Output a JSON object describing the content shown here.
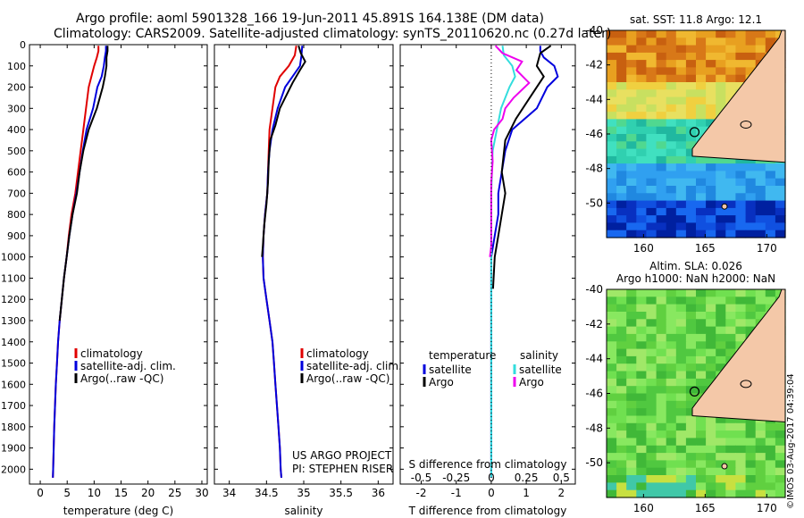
{
  "title": {
    "line1": "Argo profile: aoml 5901328_166 19-Jun-2011 45.891S 164.138E (DM data)",
    "line2": "Climatology: CARS2009. Satellite-adjusted climatology: synTS_20110620.nc (0.27d later)"
  },
  "watermark": "©IMOS 03-Aug-2017 04:39:04",
  "colors": {
    "climatology": "#e00000",
    "satellite": "#0000dd",
    "argo": "#000000",
    "argo_salinity": "#ee00ee",
    "satellite_salinity": "#33dddd"
  },
  "chart_data": [
    {
      "type": "line",
      "xlabel": "temperature (deg C)",
      "ylabel": "",
      "xlim": [
        -2,
        31
      ],
      "ylim": [
        2070,
        0
      ],
      "xticks": [
        "0",
        "5",
        "10",
        "15",
        "20",
        "25",
        "30"
      ],
      "yticks": [
        "0",
        "100",
        "200",
        "300",
        "400",
        "500",
        "600",
        "700",
        "800",
        "900",
        "1000",
        "1100",
        "1200",
        "1300",
        "1400",
        "1500",
        "1600",
        "1700",
        "1800",
        "1900",
        "2000"
      ],
      "legend": {
        "placement": "right-middle",
        "items": [
          "climatology",
          "satellite-adj. clim.",
          "Argo(..raw -QC)"
        ]
      },
      "series": [
        {
          "name": "climatology",
          "points": [
            [
              10.8,
              5
            ],
            [
              10.8,
              30
            ],
            [
              10.5,
              60
            ],
            [
              10.0,
              100
            ],
            [
              9.5,
              150
            ],
            [
              9.0,
              200
            ],
            [
              8.5,
              300
            ],
            [
              8.0,
              400
            ],
            [
              7.5,
              500
            ],
            [
              7.0,
              600
            ],
            [
              6.5,
              700
            ],
            [
              5.8,
              800
            ],
            [
              5.3,
              900
            ],
            [
              4.9,
              1000
            ],
            [
              4.4,
              1100
            ],
            [
              4.0,
              1200
            ],
            [
              3.6,
              1300
            ],
            [
              3.3,
              1400
            ],
            [
              3.1,
              1500
            ],
            [
              2.9,
              1600
            ],
            [
              2.75,
              1700
            ],
            [
              2.6,
              1800
            ],
            [
              2.5,
              1900
            ],
            [
              2.4,
              2000
            ],
            [
              2.35,
              2040
            ]
          ]
        },
        {
          "name": "satellite-adj. clim.",
          "points": [
            [
              12.2,
              5
            ],
            [
              12.2,
              30
            ],
            [
              12.0,
              60
            ],
            [
              11.8,
              100
            ],
            [
              11.4,
              150
            ],
            [
              10.6,
              200
            ],
            [
              9.8,
              300
            ],
            [
              8.6,
              400
            ],
            [
              7.9,
              500
            ],
            [
              7.3,
              600
            ],
            [
              6.7,
              700
            ],
            [
              6.0,
              800
            ],
            [
              5.4,
              900
            ],
            [
              4.9,
              1000
            ],
            [
              4.4,
              1100
            ],
            [
              4.0,
              1200
            ],
            [
              3.6,
              1300
            ],
            [
              3.3,
              1400
            ],
            [
              3.1,
              1500
            ],
            [
              2.9,
              1600
            ],
            [
              2.75,
              1700
            ],
            [
              2.6,
              1800
            ],
            [
              2.5,
              1900
            ],
            [
              2.4,
              2000
            ],
            [
              2.35,
              2040
            ]
          ]
        },
        {
          "name": "Argo(..raw -QC)",
          "points": [
            [
              12.5,
              5
            ],
            [
              12.5,
              30
            ],
            [
              12.3,
              60
            ],
            [
              12.3,
              100
            ],
            [
              12.0,
              150
            ],
            [
              11.6,
              200
            ],
            [
              10.5,
              300
            ],
            [
              9.0,
              400
            ],
            [
              8.0,
              500
            ],
            [
              7.3,
              600
            ],
            [
              6.8,
              700
            ],
            [
              6.0,
              800
            ],
            [
              5.4,
              900
            ],
            [
              4.9,
              1000
            ],
            [
              4.4,
              1100
            ],
            [
              4.0,
              1200
            ],
            [
              3.6,
              1300
            ]
          ]
        }
      ]
    },
    {
      "type": "line",
      "xlabel": "salinity",
      "ylabel": "",
      "xlim": [
        33.8,
        36.2
      ],
      "ylim": [
        2070,
        0
      ],
      "xticks": [
        "34",
        "34.5",
        "35",
        "35.5",
        "36"
      ],
      "legend": {
        "placement": "right-middle",
        "items": [
          "climatology",
          "satellite-adj. clim.",
          "Argo(..raw -QC)"
        ]
      },
      "annotation": {
        "line1": "US ARGO PROJECT",
        "line2": "PI: STEPHEN RISER"
      },
      "series": [
        {
          "name": "climatology",
          "points": [
            [
              34.9,
              5
            ],
            [
              34.88,
              50
            ],
            [
              34.8,
              100
            ],
            [
              34.68,
              150
            ],
            [
              34.62,
              200
            ],
            [
              34.58,
              300
            ],
            [
              34.54,
              400
            ],
            [
              34.53,
              500
            ],
            [
              34.52,
              600
            ],
            [
              34.51,
              700
            ],
            [
              34.48,
              800
            ],
            [
              34.46,
              900
            ],
            [
              34.45,
              1000
            ],
            [
              34.46,
              1100
            ],
            [
              34.5,
              1200
            ],
            [
              34.54,
              1300
            ],
            [
              34.58,
              1400
            ],
            [
              34.6,
              1500
            ],
            [
              34.62,
              1600
            ],
            [
              34.64,
              1700
            ],
            [
              34.66,
              1800
            ],
            [
              34.68,
              1900
            ],
            [
              34.69,
              2000
            ],
            [
              34.7,
              2040
            ]
          ]
        },
        {
          "name": "satellite-adj. clim.",
          "points": [
            [
              34.98,
              5
            ],
            [
              34.97,
              50
            ],
            [
              34.95,
              100
            ],
            [
              34.85,
              150
            ],
            [
              34.75,
              200
            ],
            [
              34.65,
              300
            ],
            [
              34.58,
              400
            ],
            [
              34.54,
              500
            ],
            [
              34.52,
              600
            ],
            [
              34.51,
              700
            ],
            [
              34.48,
              800
            ],
            [
              34.46,
              900
            ],
            [
              34.45,
              1000
            ],
            [
              34.46,
              1100
            ],
            [
              34.5,
              1200
            ],
            [
              34.54,
              1300
            ],
            [
              34.58,
              1400
            ],
            [
              34.6,
              1500
            ],
            [
              34.62,
              1600
            ],
            [
              34.64,
              1700
            ],
            [
              34.66,
              1800
            ],
            [
              34.68,
              1900
            ],
            [
              34.69,
              2000
            ],
            [
              34.7,
              2040
            ]
          ]
        },
        {
          "name": "Argo(..raw -QC)",
          "points": [
            [
              34.93,
              5
            ],
            [
              34.96,
              40
            ],
            [
              35.02,
              80
            ],
            [
              34.95,
              120
            ],
            [
              34.85,
              180
            ],
            [
              34.75,
              250
            ],
            [
              34.68,
              300
            ],
            [
              34.62,
              380
            ],
            [
              34.55,
              450
            ],
            [
              34.53,
              550
            ],
            [
              34.52,
              650
            ],
            [
              34.5,
              750
            ],
            [
              34.47,
              850
            ],
            [
              34.45,
              950
            ],
            [
              34.44,
              1000
            ]
          ]
        }
      ]
    },
    {
      "type": "line",
      "xlabel": "T difference from climatology",
      "xlabel_top": "S difference from climatology",
      "xlim": [
        -2.6,
        2.4
      ],
      "ylim": [
        2070,
        0
      ],
      "xticks": [
        "-2",
        "-1",
        "0",
        "1",
        "2"
      ],
      "xticks_top": [
        "-0.5",
        "-0.25",
        "0",
        "0.25",
        "0.5"
      ],
      "legend": {
        "placement": "right-middle",
        "temperature_header": "temperature",
        "salinity_header": "salinity",
        "items": [
          "satellite",
          "Argo",
          "satellite",
          "Argo"
        ]
      },
      "series": [
        {
          "name": "temperature satellite",
          "points": [
            [
              1.4,
              5
            ],
            [
              1.4,
              30
            ],
            [
              1.5,
              60
            ],
            [
              1.8,
              100
            ],
            [
              1.9,
              150
            ],
            [
              1.6,
              200
            ],
            [
              1.3,
              300
            ],
            [
              0.6,
              400
            ],
            [
              0.4,
              500
            ],
            [
              0.3,
              600
            ],
            [
              0.2,
              700
            ],
            [
              0.2,
              800
            ],
            [
              0.1,
              900
            ],
            [
              0.0,
              1000
            ],
            [
              0.0,
              1200
            ],
            [
              0.0,
              1400
            ],
            [
              0.0,
              1600
            ],
            [
              0.0,
              1800
            ],
            [
              0.0,
              2040
            ]
          ]
        },
        {
          "name": "temperature Argo",
          "points": [
            [
              1.7,
              5
            ],
            [
              1.4,
              40
            ],
            [
              1.3,
              100
            ],
            [
              1.5,
              150
            ],
            [
              1.1,
              250
            ],
            [
              0.7,
              350
            ],
            [
              0.4,
              450
            ],
            [
              0.3,
              600
            ],
            [
              0.4,
              700
            ],
            [
              0.3,
              800
            ],
            [
              0.2,
              900
            ],
            [
              0.1,
              1000
            ],
            [
              0.05,
              1150
            ]
          ]
        },
        {
          "name": "salinity satellite",
          "points": [
            [
              0.08,
              5
            ],
            [
              0.09,
              50
            ],
            [
              0.15,
              100
            ],
            [
              0.17,
              150
            ],
            [
              0.13,
              200
            ],
            [
              0.07,
              300
            ],
            [
              0.04,
              400
            ],
            [
              0.01,
              500
            ],
            [
              0.0,
              700
            ],
            [
              0.0,
              1000
            ],
            [
              0.0,
              1500
            ],
            [
              0.0,
              2040
            ]
          ]
        },
        {
          "name": "salinity Argo",
          "points": [
            [
              0.03,
              5
            ],
            [
              0.08,
              40
            ],
            [
              0.22,
              80
            ],
            [
              0.18,
              120
            ],
            [
              0.27,
              180
            ],
            [
              0.16,
              250
            ],
            [
              0.1,
              300
            ],
            [
              0.08,
              350
            ],
            [
              0.02,
              400
            ],
            [
              0.0,
              450
            ],
            [
              0.01,
              550
            ],
            [
              0.0,
              650
            ],
            [
              0.0,
              800
            ],
            [
              0.0,
              950
            ],
            [
              -0.01,
              1000
            ]
          ]
        }
      ]
    },
    {
      "type": "heatmap",
      "title": "sat. SST: 11.8 Argo: 12.1",
      "xlim": [
        157,
        171.5
      ],
      "ylim": [
        -52,
        -40
      ],
      "xticks": [
        "160",
        "165",
        "170"
      ],
      "yticks": [
        "-40",
        "-42",
        "-44",
        "-46",
        "-48",
        "-50"
      ],
      "marker": {
        "lon": 164.138,
        "lat": -45.891
      }
    },
    {
      "type": "heatmap",
      "title": "Altim. SLA: 0.026",
      "subtitle": "Argo h1000: NaN h2000: NaN",
      "xlim": [
        157,
        171.5
      ],
      "ylim": [
        -52,
        -40
      ],
      "xticks": [
        "160",
        "165",
        "170"
      ],
      "yticks": [
        "-40",
        "-42",
        "-44",
        "-46",
        "-48",
        "-50"
      ],
      "marker": {
        "lon": 164.138,
        "lat": -45.891
      }
    }
  ]
}
